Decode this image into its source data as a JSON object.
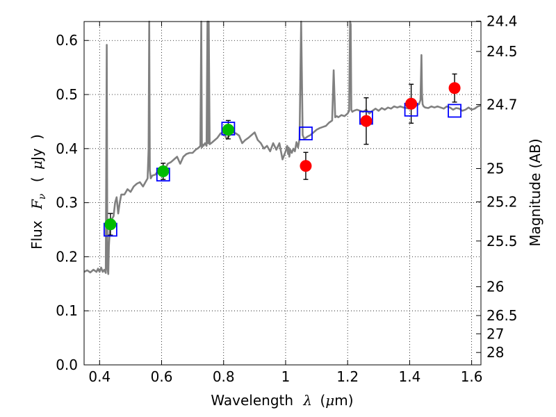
{
  "chart_data": {
    "type": "scatter",
    "title": "",
    "xlabel": {
      "prefix": "Wavelength",
      "symbol": "λ",
      "open": "(",
      "mu": "μ",
      "unit": "m)"
    },
    "ylabel": {
      "prefix": "Flux",
      "symbol": "F",
      "subscript": "ν",
      "open": "(",
      "mu": "μ",
      "unit": "Jy",
      "close": ")"
    },
    "y2label": "Magnitude (AB)",
    "xlim": [
      0.35,
      1.63
    ],
    "ylim": [
      0.0,
      0.635
    ],
    "xticks": [
      0.4,
      0.6,
      0.8,
      1.0,
      1.2,
      1.4,
      1.6
    ],
    "xtick_labels": [
      "0.4",
      "0.6",
      "0.8",
      "1",
      "1.2",
      "1.4",
      "1.6"
    ],
    "yticks": [
      0.0,
      0.1,
      0.2,
      0.3,
      0.4,
      0.5,
      0.6
    ],
    "ytick_labels": [
      "0.0",
      "0.1",
      "0.2",
      "0.3",
      "0.4",
      "0.5",
      "0.6"
    ],
    "y2ticks": [
      {
        "flux": 0.6358,
        "label": "24.4"
      },
      {
        "flux": 0.5797,
        "label": "24.5"
      },
      {
        "flux": 0.4815,
        "label": "24.7"
      },
      {
        "flux": 0.3631,
        "label": "25"
      },
      {
        "flux": 0.3016,
        "label": "25.2"
      },
      {
        "flux": 0.2291,
        "label": "25.5"
      },
      {
        "flux": 0.1445,
        "label": "26"
      },
      {
        "flux": 0.0912,
        "label": "26.5"
      },
      {
        "flux": 0.0575,
        "label": "27"
      },
      {
        "flux": 0.0229,
        "label": "28"
      }
    ],
    "grid": true,
    "colors": {
      "spectrum": "#808080",
      "model_marker": "#0000ff",
      "optical_points": "#00bb00",
      "nir_points": "#ff0000",
      "errorbar": "#000000"
    },
    "spectrum": {
      "name": "",
      "x": [
        0.35,
        0.36,
        0.37,
        0.38,
        0.39,
        0.395,
        0.4,
        0.405,
        0.41,
        0.415,
        0.42,
        0.423,
        0.425,
        0.428,
        0.43,
        0.432,
        0.434,
        0.436,
        0.44,
        0.445,
        0.45,
        0.455,
        0.46,
        0.465,
        0.47,
        0.48,
        0.49,
        0.5,
        0.51,
        0.52,
        0.53,
        0.54,
        0.55,
        0.555,
        0.558,
        0.56,
        0.562,
        0.565,
        0.57,
        0.58,
        0.59,
        0.6,
        0.61,
        0.62,
        0.63,
        0.64,
        0.65,
        0.66,
        0.67,
        0.68,
        0.69,
        0.7,
        0.71,
        0.72,
        0.725,
        0.728,
        0.73,
        0.732,
        0.735,
        0.74,
        0.745,
        0.748,
        0.75,
        0.752,
        0.755,
        0.76,
        0.77,
        0.78,
        0.79,
        0.8,
        0.81,
        0.82,
        0.83,
        0.84,
        0.85,
        0.86,
        0.87,
        0.88,
        0.89,
        0.9,
        0.91,
        0.92,
        0.93,
        0.94,
        0.95,
        0.96,
        0.97,
        0.98,
        0.99,
        1.0,
        1.005,
        1.008,
        1.01,
        1.012,
        1.015,
        1.02,
        1.025,
        1.03,
        1.035,
        1.04,
        1.045,
        1.05,
        1.055,
        1.06,
        1.065,
        1.07,
        1.08,
        1.09,
        1.1,
        1.11,
        1.12,
        1.13,
        1.14,
        1.15,
        1.155,
        1.16,
        1.165,
        1.17,
        1.18,
        1.19,
        1.2,
        1.205,
        1.208,
        1.21,
        1.212,
        1.215,
        1.22,
        1.23,
        1.24,
        1.25,
        1.26,
        1.27,
        1.28,
        1.29,
        1.3,
        1.31,
        1.32,
        1.33,
        1.34,
        1.35,
        1.36,
        1.37,
        1.38,
        1.39,
        1.4,
        1.41,
        1.42,
        1.43,
        1.435,
        1.438,
        1.44,
        1.442,
        1.445,
        1.45,
        1.46,
        1.47,
        1.48,
        1.49,
        1.5,
        1.51,
        1.52,
        1.53,
        1.54,
        1.55,
        1.56,
        1.57,
        1.58,
        1.59,
        1.6,
        1.61,
        1.62,
        1.63
      ],
      "y": [
        0.172,
        0.175,
        0.171,
        0.176,
        0.172,
        0.178,
        0.172,
        0.18,
        0.172,
        0.176,
        0.17,
        0.592,
        0.18,
        0.168,
        0.22,
        0.24,
        0.262,
        0.265,
        0.27,
        0.275,
        0.3,
        0.31,
        0.28,
        0.3,
        0.315,
        0.315,
        0.325,
        0.32,
        0.33,
        0.335,
        0.338,
        0.33,
        0.34,
        0.345,
        0.4,
        0.65,
        0.36,
        0.345,
        0.35,
        0.352,
        0.36,
        0.355,
        0.36,
        0.372,
        0.375,
        0.38,
        0.385,
        0.372,
        0.385,
        0.39,
        0.392,
        0.392,
        0.398,
        0.402,
        0.405,
        0.65,
        0.402,
        0.408,
        0.405,
        0.41,
        0.405,
        0.65,
        0.41,
        0.65,
        0.408,
        0.41,
        0.415,
        0.42,
        0.428,
        0.43,
        0.418,
        0.425,
        0.43,
        0.428,
        0.424,
        0.41,
        0.416,
        0.42,
        0.425,
        0.43,
        0.416,
        0.41,
        0.4,
        0.405,
        0.395,
        0.41,
        0.398,
        0.41,
        0.38,
        0.395,
        0.405,
        0.39,
        0.402,
        0.385,
        0.398,
        0.392,
        0.4,
        0.395,
        0.412,
        0.402,
        0.418,
        0.65,
        0.425,
        0.418,
        0.42,
        0.422,
        0.425,
        0.43,
        0.435,
        0.438,
        0.44,
        0.442,
        0.448,
        0.452,
        0.545,
        0.458,
        0.46,
        0.458,
        0.462,
        0.46,
        0.465,
        0.47,
        0.65,
        0.63,
        0.472,
        0.468,
        0.47,
        0.472,
        0.47,
        0.468,
        0.472,
        0.465,
        0.47,
        0.474,
        0.47,
        0.475,
        0.472,
        0.476,
        0.474,
        0.478,
        0.476,
        0.478,
        0.476,
        0.475,
        0.474,
        0.478,
        0.48,
        0.482,
        0.49,
        0.573,
        0.5,
        0.482,
        0.478,
        0.476,
        0.475,
        0.478,
        0.476,
        0.478,
        0.476,
        0.474,
        0.478,
        0.476,
        0.472,
        0.475,
        0.474,
        0.47,
        0.472,
        0.476,
        0.472,
        0.474,
        0.478,
        0.48
      ]
    },
    "series": [
      {
        "name": "",
        "marker": "open-square",
        "x": [
          0.435,
          0.605,
          0.815,
          1.065,
          1.26,
          1.405,
          1.545
        ],
        "y": [
          0.25,
          0.352,
          0.437,
          0.428,
          0.457,
          0.472,
          0.47
        ]
      },
      {
        "name": "",
        "marker": "filled-circle",
        "x": [
          0.435,
          0.605,
          0.815
        ],
        "y": [
          0.26,
          0.358,
          0.435
        ],
        "yerr": [
          0.02,
          0.015,
          0.017
        ]
      },
      {
        "name": "",
        "marker": "filled-circle",
        "x": [
          1.065,
          1.26,
          1.405,
          1.545
        ],
        "y": [
          0.368,
          0.451,
          0.483,
          0.512
        ],
        "yerr": [
          0.025,
          0.043,
          0.036,
          0.026
        ]
      }
    ]
  }
}
